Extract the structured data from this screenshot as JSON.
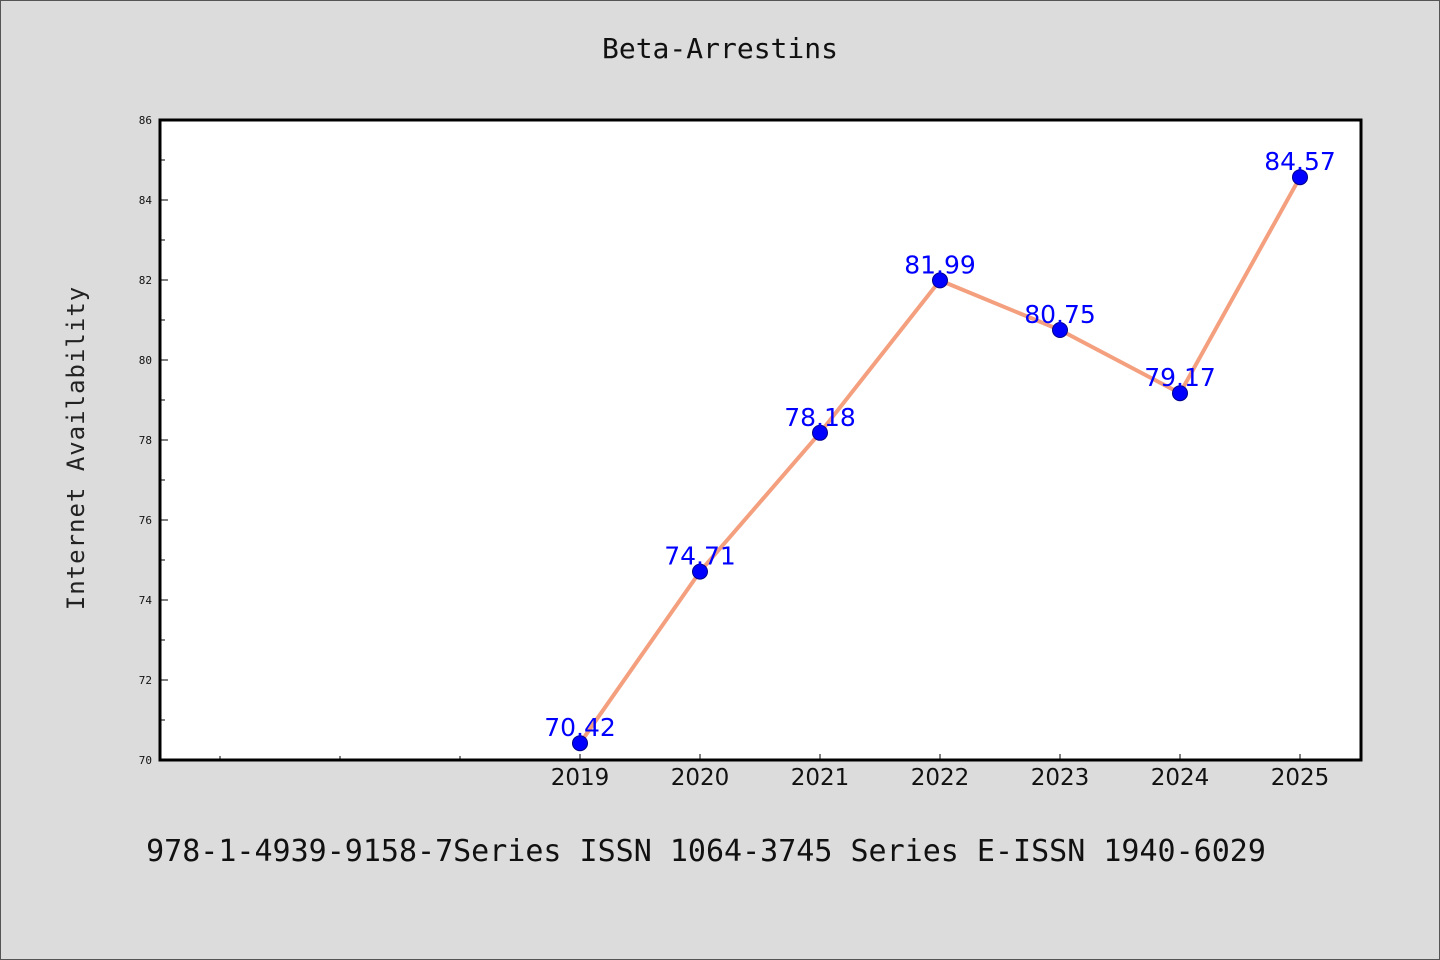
{
  "chart_data": {
    "type": "line",
    "title": "Beta-Arrestins",
    "ylabel": "Internet Availability",
    "xlabel": "",
    "categories": [
      "2019",
      "2020",
      "2021",
      "2022",
      "2023",
      "2024",
      "2025"
    ],
    "values": [
      70.42,
      74.71,
      78.18,
      81.99,
      80.75,
      79.17,
      84.57
    ],
    "data_labels": [
      "70.42",
      "74.71",
      "78.18",
      "81.99",
      "80.75",
      "79.17",
      "84.57"
    ],
    "ylim": [
      70,
      86
    ],
    "yticks": [
      70,
      72,
      74,
      76,
      78,
      80,
      82,
      84,
      86
    ],
    "grid": false,
    "legend": "none",
    "line_color": "#f4a07f",
    "marker_color": "#0000ff",
    "label_color": "#0000ff"
  },
  "footer": "978-1-4939-9158-7Series ISSN 1064-3745 Series E-ISSN 1940-6029"
}
